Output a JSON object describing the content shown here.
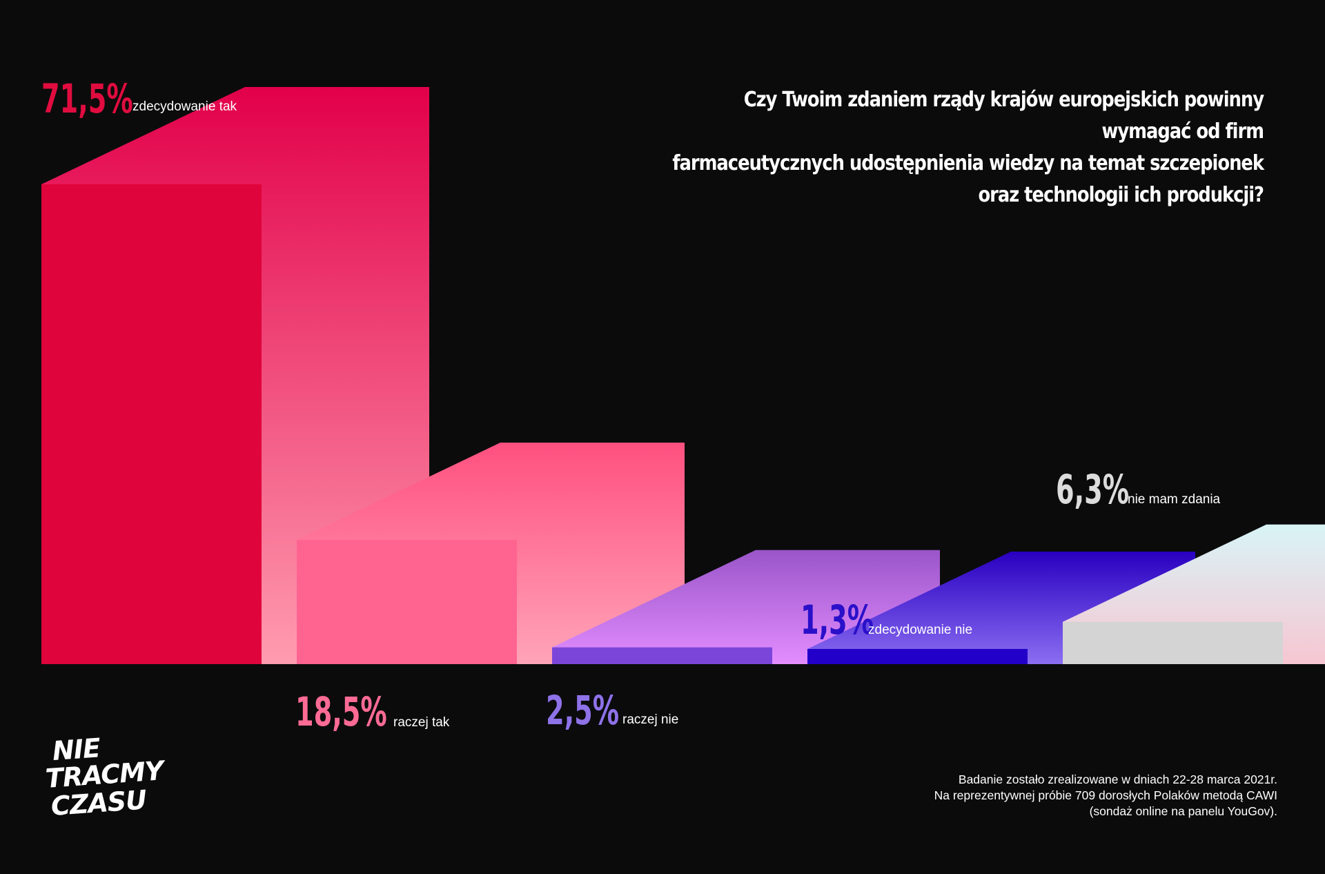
{
  "question": {
    "line1": "Czy Twoim zdaniem rządy krajów europejskich powinny wymagać od firm",
    "line2": "farmaceutycznych udostępnienia wiedzy na temat szczepionek",
    "line3": "oraz technologii ich produkcji?"
  },
  "footnote": {
    "line1": "Badanie zostało zrealizowane w dniach 22-28 marca 2021r.",
    "line2": "Na reprezentywnej próbie 709 dorosłych Polaków metodą CAWI",
    "line3": "(sondaż online na panelu YouGov)."
  },
  "logo": {
    "line1": "NIE",
    "line2": "TRACMY",
    "line3": "CZASU"
  },
  "chart_data": {
    "type": "bar",
    "title": "",
    "xlabel": "",
    "ylabel": "",
    "grid": false,
    "categories": [
      "zdecydowanie tak",
      "raczej tak",
      "raczej nie",
      "zdecydowanie nie",
      "nie mam zdania"
    ],
    "values": [
      71.5,
      18.5,
      2.5,
      1.3,
      6.3
    ],
    "value_labels": [
      "71,5%",
      "18,5%",
      "2,5%",
      "1,3%",
      "6,3%"
    ],
    "colors": {
      "front": [
        "#e0043c",
        "#ff6490",
        "#7b45d9",
        "#2300c9",
        "#d4d4d4"
      ],
      "back_top": [
        "#e2004a",
        "#ff5080",
        "#9a55c9",
        "#2800c0",
        "#d8f4f6"
      ],
      "back_bottom": [
        "#ff9cb0",
        "#ffa4b8",
        "#e38dff",
        "#8b6ef2",
        "#f7c6d2"
      ],
      "value_text": [
        "#e00c3f",
        "#ff6b95",
        "#8e72e8",
        "#2a10c9",
        "#dcdcdc"
      ],
      "label_text": "#ffffff"
    }
  }
}
